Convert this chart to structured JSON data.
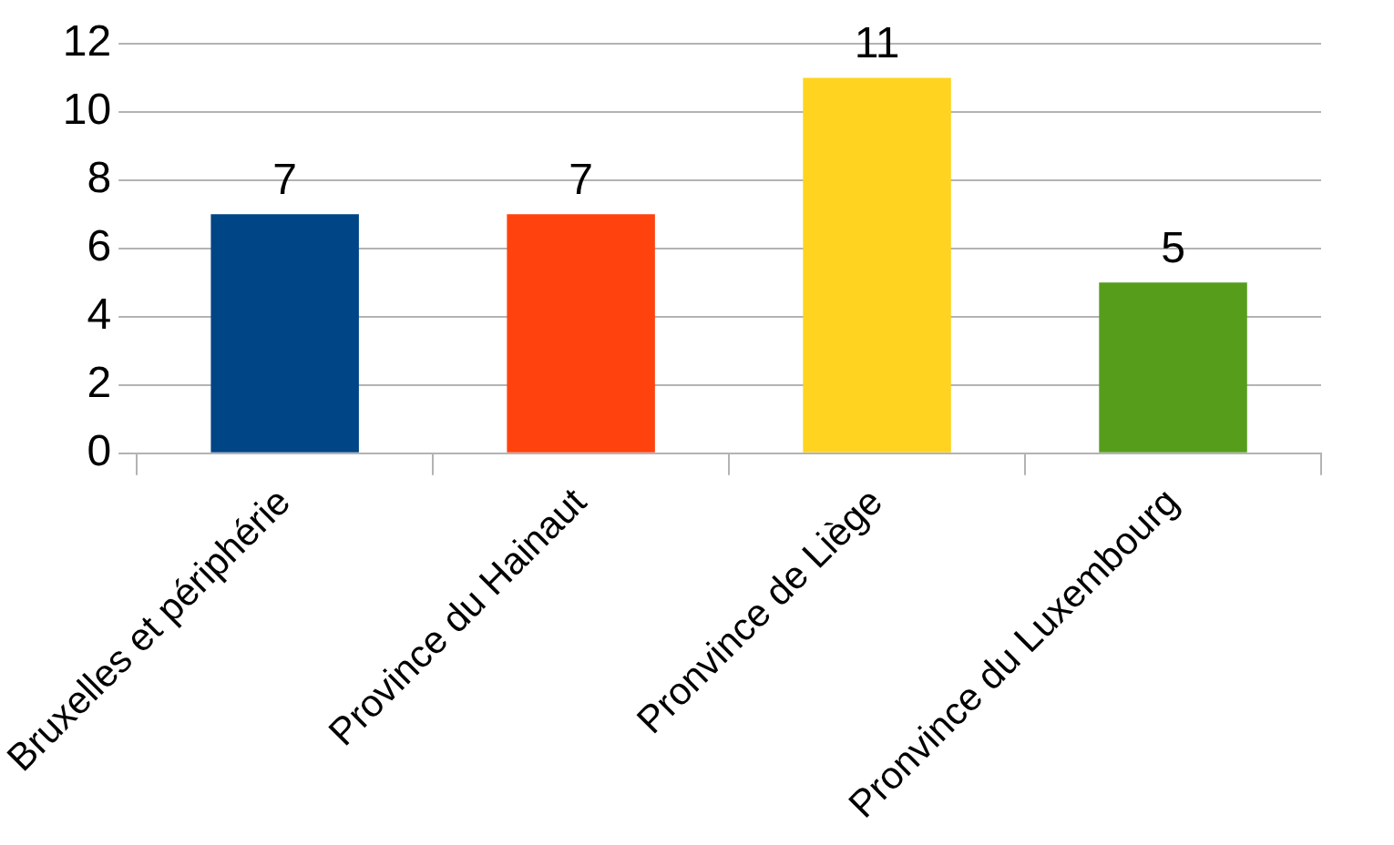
{
  "chart_data": {
    "type": "bar",
    "categories": [
      "Bruxelles et périphérie",
      "Province du Hainaut",
      "Pronvince de Liège",
      "Pronvince du Luxembourg"
    ],
    "values": [
      7,
      7,
      11,
      5
    ],
    "colors": [
      "#004586",
      "#ff420e",
      "#ffd320",
      "#579d1c"
    ],
    "ylim": [
      0,
      12
    ],
    "yticks": [
      0,
      2,
      4,
      6,
      8,
      10,
      12
    ],
    "grid": "y",
    "legend": false,
    "data_labels": true
  }
}
